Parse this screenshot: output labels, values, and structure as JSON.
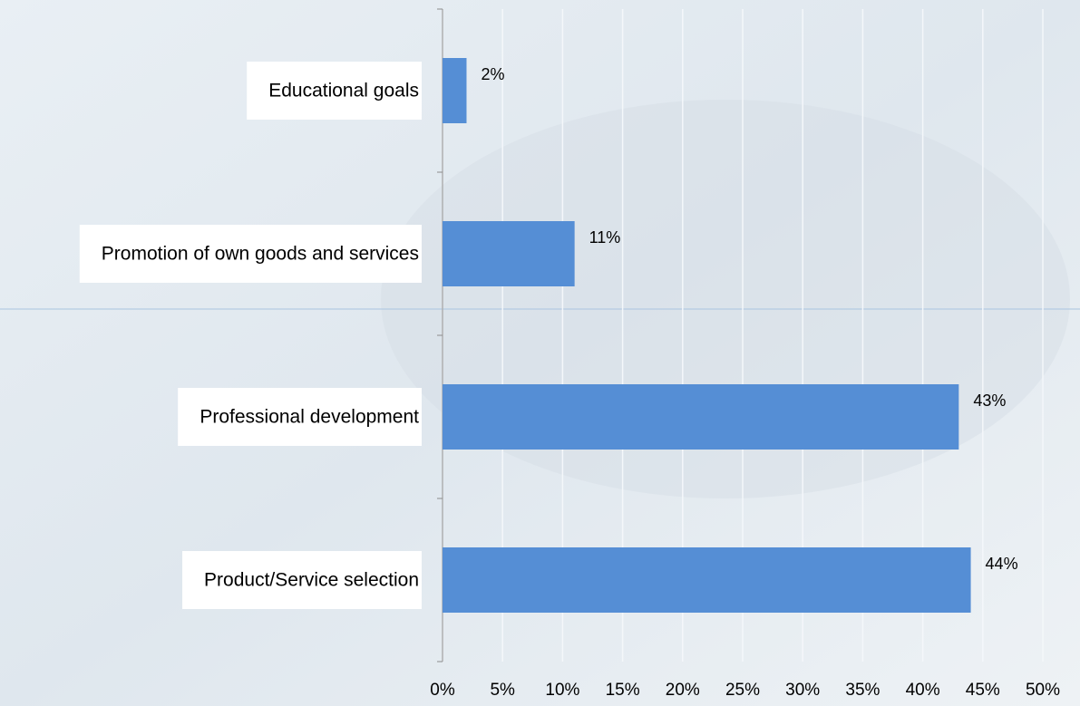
{
  "chart_data": {
    "type": "hbar",
    "categories": [
      "Educational goals",
      "Promotion of own goods and services",
      "Professional development",
      "Product/Service selection"
    ],
    "values": [
      2,
      11,
      43,
      44
    ],
    "value_labels": [
      "2%",
      "11%",
      "43%",
      "44%"
    ],
    "color": "#558ed5",
    "xlim": [
      0,
      50
    ],
    "xticks": [
      {
        "value": 0,
        "label": "0%"
      },
      {
        "value": 5,
        "label": "5%"
      },
      {
        "value": 10,
        "label": "10%"
      },
      {
        "value": 15,
        "label": "15%"
      },
      {
        "value": 20,
        "label": "20%"
      },
      {
        "value": 25,
        "label": "25%"
      },
      {
        "value": 30,
        "label": "30%"
      },
      {
        "value": 35,
        "label": "35%"
      },
      {
        "value": 40,
        "label": "40%"
      },
      {
        "value": 45,
        "label": "45%"
      },
      {
        "value": 50,
        "label": "50%"
      }
    ],
    "grid": true
  }
}
